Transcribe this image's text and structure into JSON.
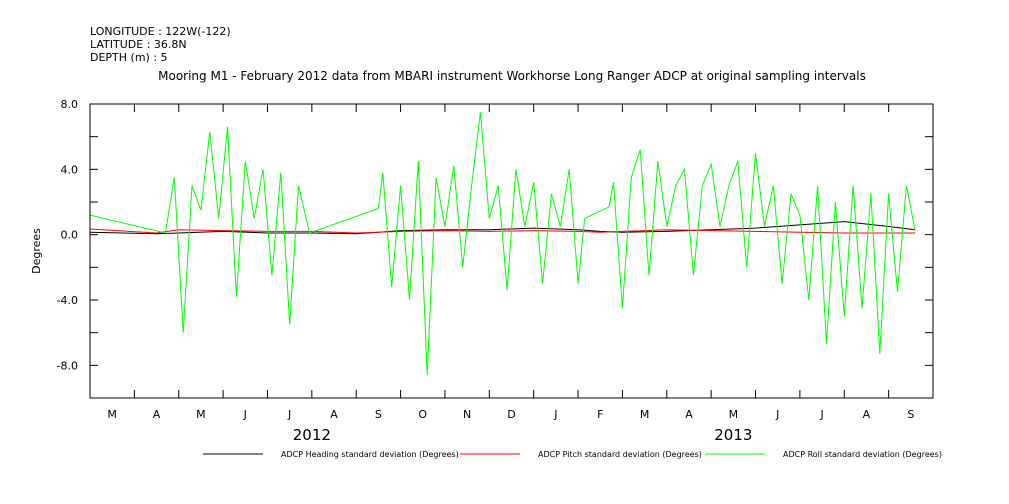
{
  "header": {
    "longitude": "LONGITUDE : 122W(-122)",
    "latitude": "LATITUDE : 36.8N",
    "depth": "DEPTH (m) : 5"
  },
  "chart_data": {
    "type": "line",
    "title": "Mooring M1 - February 2012 data from MBARI instrument Workhorse Long Ranger ADCP at original sampling intervals",
    "xlabel": "",
    "ylabel": "Degrees",
    "ylim": [
      -10,
      8
    ],
    "yticks": [
      8.0,
      4.0,
      0.0,
      -4.0,
      -8.0
    ],
    "ytick_labels": [
      "8.0",
      "4.0",
      "0.0",
      "-4.0",
      "-8.0"
    ],
    "xlim": [
      0,
      19
    ],
    "month_labels": [
      "M",
      "A",
      "M",
      "J",
      "J",
      "A",
      "S",
      "O",
      "N",
      "D",
      "J",
      "F",
      "M",
      "A",
      "M",
      "J",
      "J",
      "A",
      "S"
    ],
    "year_labels": [
      {
        "label": "2012",
        "at": 5
      },
      {
        "label": "2013",
        "at": 14.5
      }
    ],
    "grid": false,
    "legend_position": "bottom",
    "series": [
      {
        "name": "ADCP Heading standard deviation (Degrees)",
        "color": "#000000",
        "x": [
          0,
          1.5,
          2.0,
          3.0,
          4.0,
          5.0,
          6.0,
          7.0,
          8.0,
          9.0,
          10.0,
          11.0,
          11.5,
          12.0,
          13.0,
          14.0,
          15.0,
          16.0,
          17.0,
          18.0,
          18.6
        ],
        "y": [
          0.15,
          0.05,
          0.1,
          0.2,
          0.1,
          0.1,
          0.05,
          0.25,
          0.3,
          0.3,
          0.4,
          0.3,
          0.2,
          0.15,
          0.2,
          0.3,
          0.4,
          0.6,
          0.8,
          0.5,
          0.3
        ]
      },
      {
        "name": "ADCP Pitch standard deviation (Degrees)",
        "color": "#ff0000",
        "x": [
          0,
          1.5,
          2.0,
          3.0,
          4.0,
          5.0,
          6.0,
          7.0,
          8.0,
          9.0,
          10.0,
          11.0,
          11.5,
          12.0,
          13.0,
          14.0,
          15.0,
          16.0,
          17.0,
          18.0,
          18.6
        ],
        "y": [
          0.35,
          0.1,
          0.3,
          0.25,
          0.2,
          0.2,
          0.1,
          0.2,
          0.25,
          0.2,
          0.25,
          0.2,
          0.15,
          0.2,
          0.3,
          0.25,
          0.2,
          0.15,
          0.1,
          0.1,
          0.1
        ]
      },
      {
        "name": "ADCP Roll standard deviation (Degrees)",
        "color": "#00ff00",
        "x": [
          0,
          1.7,
          1.9,
          2.1,
          2.3,
          2.5,
          2.7,
          2.9,
          3.1,
          3.3,
          3.5,
          3.7,
          3.9,
          4.1,
          4.3,
          4.5,
          4.7,
          4.95,
          6.5,
          6.6,
          6.8,
          7.0,
          7.2,
          7.4,
          7.6,
          7.8,
          8.0,
          8.2,
          8.4,
          8.6,
          8.8,
          9.0,
          9.2,
          9.4,
          9.6,
          9.8,
          10.0,
          10.2,
          10.4,
          10.6,
          10.8,
          11.0,
          11.15,
          11.7,
          11.8,
          12.0,
          12.2,
          12.4,
          12.6,
          12.8,
          13.0,
          13.2,
          13.4,
          13.6,
          13.8,
          14.0,
          14.2,
          14.4,
          14.6,
          14.8,
          15.0,
          15.2,
          15.4,
          15.6,
          15.8,
          16.0,
          16.2,
          16.4,
          16.6,
          16.8,
          17.0,
          17.2,
          17.4,
          17.6,
          17.8,
          18.0,
          18.2,
          18.4,
          18.6
        ],
        "y": [
          1.2,
          0.1,
          3.5,
          -6.0,
          3.0,
          1.5,
          6.3,
          1.0,
          6.6,
          -3.8,
          4.5,
          1.0,
          4.0,
          -2.5,
          3.8,
          -5.5,
          3.0,
          0.1,
          1.6,
          3.8,
          -3.2,
          3.0,
          -4.0,
          4.5,
          -8.6,
          3.5,
          0.5,
          4.2,
          -2.0,
          3.0,
          7.5,
          1.0,
          3.0,
          -3.4,
          4.0,
          0.5,
          3.2,
          -3.0,
          2.5,
          0.5,
          4.0,
          -3.0,
          1.0,
          1.7,
          3.2,
          -4.5,
          3.5,
          5.2,
          -2.5,
          4.5,
          0.5,
          3.0,
          4.0,
          -2.5,
          3.0,
          4.3,
          0.5,
          3.0,
          4.5,
          -2.0,
          5.0,
          0.5,
          3.0,
          -3.0,
          2.5,
          1.2,
          -4.0,
          3.0,
          -6.7,
          2.0,
          -5.0,
          3.0,
          -4.5,
          2.5,
          -7.3,
          2.5,
          -3.5,
          3.0,
          0.2
        ]
      }
    ]
  }
}
